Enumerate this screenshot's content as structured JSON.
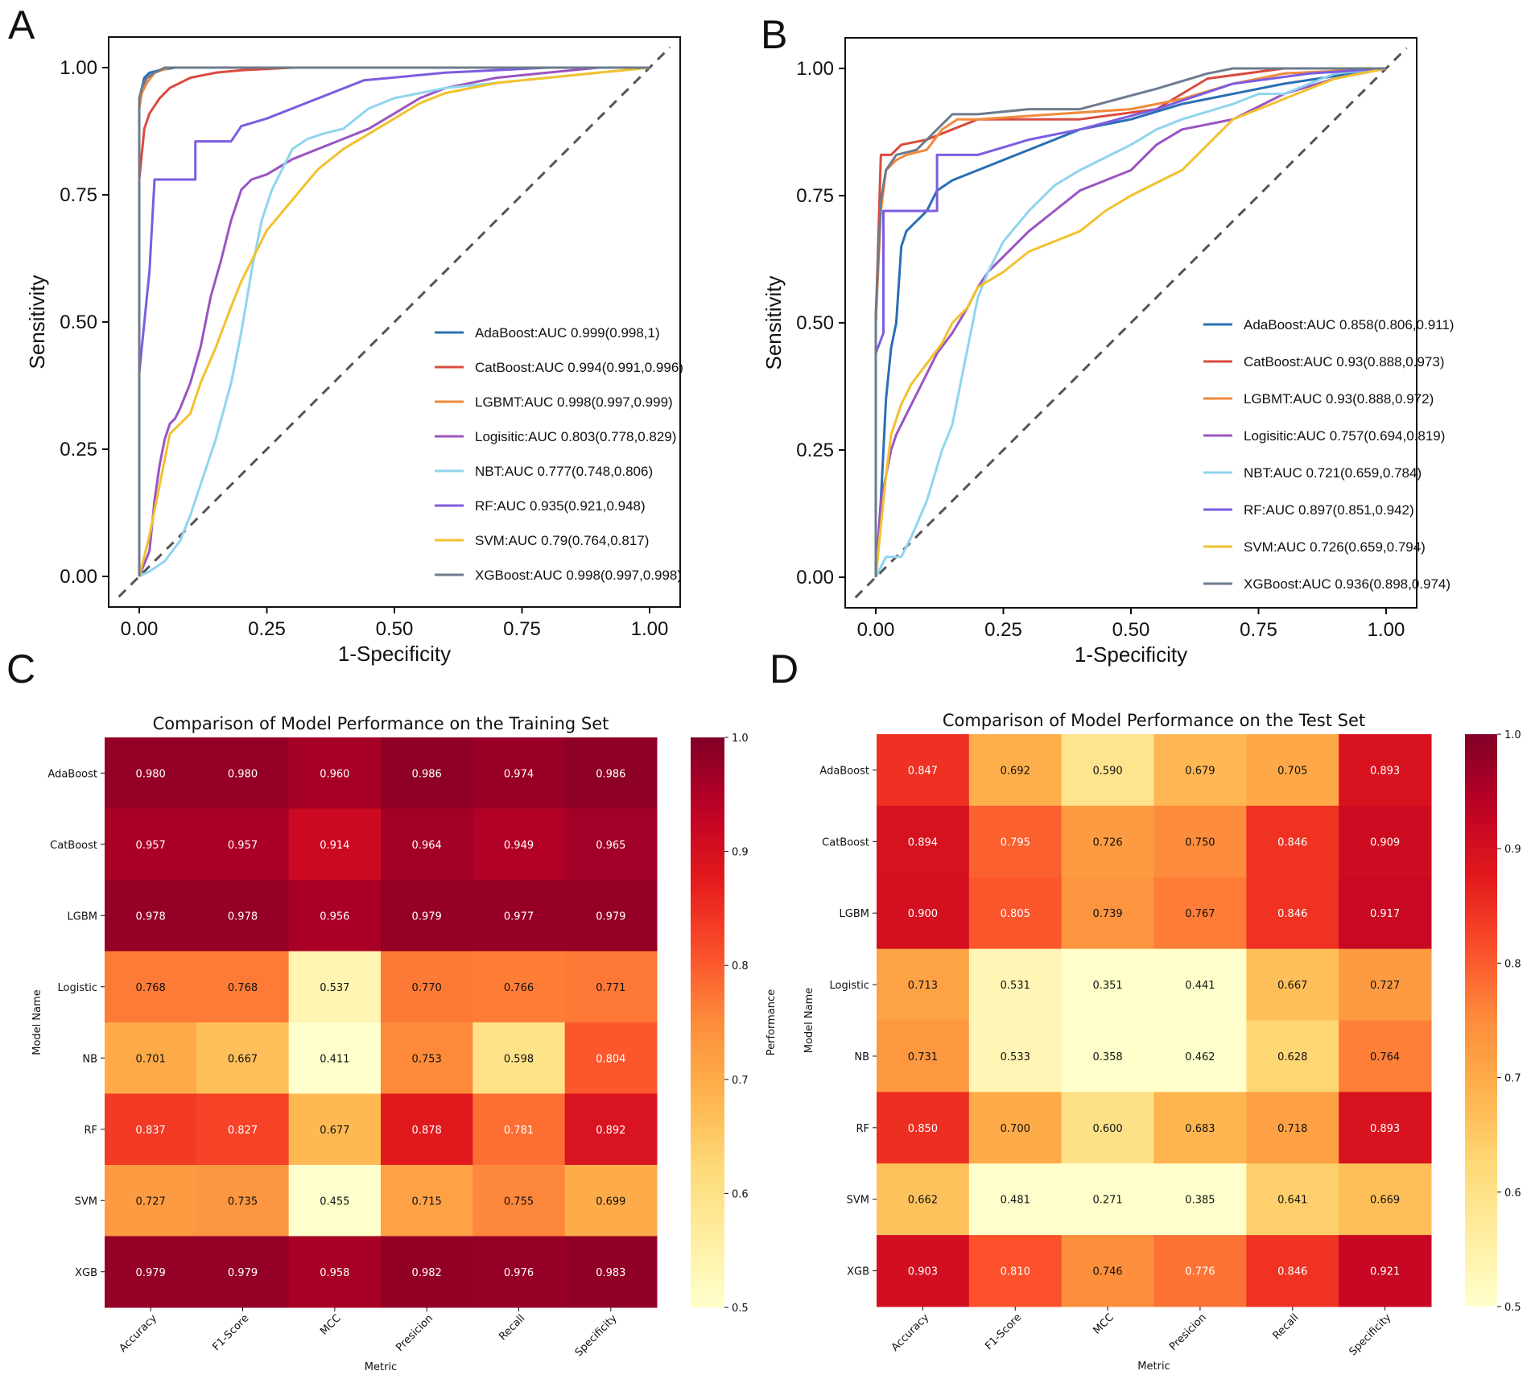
{
  "panels": {
    "a": "A",
    "b": "B",
    "c": "C",
    "d": "D"
  },
  "chart_data": [
    {
      "id": "A",
      "type": "line",
      "title": "",
      "xlabel": "1-Specificity",
      "ylabel": "Sensitivity",
      "xlim": [
        0,
        1
      ],
      "ylim": [
        0,
        1
      ],
      "xticks": [
        "0.00",
        "0.25",
        "0.50",
        "0.75",
        "1.00"
      ],
      "yticks": [
        "0.00",
        "0.25",
        "0.50",
        "0.75",
        "1.00"
      ],
      "diagonal": true,
      "series": [
        {
          "name": "AdaBoost",
          "legend": "AdaBoost:AUC 0.999(0.998,1)",
          "color": "#2a6fb5",
          "x": [
            0,
            0,
            0.005,
            0.01,
            0.02,
            0.04,
            0.07,
            0.1,
            1
          ],
          "y": [
            0,
            0.93,
            0.96,
            0.98,
            0.99,
            0.995,
            1.0,
            1.0,
            1.0
          ]
        },
        {
          "name": "CatBoost",
          "legend": "CatBoost:AUC 0.994(0.991,0.996)",
          "color": "#d94b3f",
          "x": [
            0,
            0,
            0.01,
            0.02,
            0.04,
            0.06,
            0.1,
            0.15,
            0.2,
            0.3,
            0.35,
            1
          ],
          "y": [
            0,
            0.78,
            0.88,
            0.91,
            0.94,
            0.96,
            0.98,
            0.99,
            0.995,
            1.0,
            1.0,
            1.0
          ]
        },
        {
          "name": "LGBMT",
          "legend": "LGBMT:AUC 0.998(0.997,0.999)",
          "color": "#f08a3c",
          "x": [
            0,
            0,
            0.005,
            0.015,
            0.03,
            0.06,
            0.1,
            1
          ],
          "y": [
            0,
            0.92,
            0.95,
            0.97,
            0.99,
            1.0,
            1.0,
            1.0
          ]
        },
        {
          "name": "Logistic",
          "legend": "Logisitic:AUC 0.803(0.778,0.829)",
          "color": "#9a55c2",
          "x": [
            0,
            0.02,
            0.03,
            0.04,
            0.05,
            0.06,
            0.07,
            0.08,
            0.1,
            0.12,
            0.14,
            0.16,
            0.18,
            0.2,
            0.22,
            0.25,
            0.3,
            0.35,
            0.4,
            0.45,
            0.5,
            0.55,
            0.6,
            0.7,
            0.8,
            0.9,
            1.0
          ],
          "y": [
            0,
            0.05,
            0.15,
            0.22,
            0.27,
            0.3,
            0.31,
            0.33,
            0.38,
            0.45,
            0.55,
            0.62,
            0.7,
            0.76,
            0.78,
            0.79,
            0.82,
            0.84,
            0.86,
            0.88,
            0.91,
            0.94,
            0.96,
            0.98,
            0.99,
            1.0,
            1.0
          ]
        },
        {
          "name": "NBT",
          "legend": "NBT:AUC 0.777(0.748,0.806)",
          "color": "#8fd5ef",
          "x": [
            0,
            0.02,
            0.05,
            0.08,
            0.1,
            0.12,
            0.15,
            0.18,
            0.2,
            0.22,
            0.24,
            0.26,
            0.28,
            0.3,
            0.33,
            0.36,
            0.4,
            0.45,
            0.5,
            0.6,
            0.7,
            0.8,
            0.9,
            1.0
          ],
          "y": [
            0,
            0.01,
            0.03,
            0.07,
            0.12,
            0.18,
            0.27,
            0.38,
            0.48,
            0.6,
            0.7,
            0.76,
            0.8,
            0.84,
            0.86,
            0.87,
            0.88,
            0.92,
            0.94,
            0.96,
            0.97,
            0.98,
            0.99,
            1.0
          ]
        },
        {
          "name": "RF",
          "legend": "RF:AUC 0.935(0.921,0.948)",
          "color": "#7d5ce0",
          "x": [
            0,
            0,
            0.02,
            0.03,
            0.06,
            0.06,
            0.11,
            0.11,
            0.18,
            0.2,
            0.25,
            0.44,
            0.6,
            0.8,
            1.0
          ],
          "y": [
            0,
            0.4,
            0.6,
            0.78,
            0.78,
            0.78,
            0.78,
            0.855,
            0.855,
            0.885,
            0.9,
            0.975,
            0.99,
            1.0,
            1.0
          ]
        },
        {
          "name": "SVM",
          "legend": "SVM:AUC 0.79(0.764,0.817)",
          "color": "#f2c12e",
          "x": [
            0,
            0.02,
            0.04,
            0.06,
            0.08,
            0.1,
            0.12,
            0.15,
            0.18,
            0.2,
            0.22,
            0.25,
            0.3,
            0.35,
            0.4,
            0.45,
            0.5,
            0.55,
            0.6,
            0.7,
            0.8,
            0.9,
            1.0
          ],
          "y": [
            0,
            0.08,
            0.18,
            0.28,
            0.3,
            0.32,
            0.38,
            0.45,
            0.53,
            0.58,
            0.62,
            0.68,
            0.74,
            0.8,
            0.84,
            0.87,
            0.9,
            0.93,
            0.95,
            0.97,
            0.98,
            0.99,
            1.0
          ]
        },
        {
          "name": "XGBoost",
          "legend": "XGBoost:AUC 0.998(0.997,0.998)",
          "color": "#6d7b8d",
          "x": [
            0,
            0,
            0.005,
            0.015,
            0.03,
            0.05,
            0.08,
            1
          ],
          "y": [
            0,
            0.94,
            0.96,
            0.98,
            0.99,
            1.0,
            1.0,
            1.0
          ]
        }
      ]
    },
    {
      "id": "B",
      "type": "line",
      "title": "",
      "xlabel": "1-Specificity",
      "ylabel": "Sensitivity",
      "xlim": [
        0,
        1
      ],
      "ylim": [
        0,
        1
      ],
      "xticks": [
        "0.00",
        "0.25",
        "0.50",
        "0.75",
        "1.00"
      ],
      "yticks": [
        "0.00",
        "0.25",
        "0.50",
        "0.75",
        "1.00"
      ],
      "diagonal": true,
      "series": [
        {
          "name": "AdaBoost",
          "legend": "AdaBoost:AUC 0.858(0.806,0.911)",
          "color": "#2a6fb5",
          "x": [
            0,
            0.01,
            0.02,
            0.03,
            0.04,
            0.05,
            0.06,
            0.08,
            0.1,
            0.12,
            0.15,
            0.2,
            0.3,
            0.35,
            0.4,
            0.5,
            0.6,
            0.8,
            1.0
          ],
          "y": [
            0,
            0.15,
            0.35,
            0.45,
            0.5,
            0.65,
            0.68,
            0.7,
            0.72,
            0.76,
            0.78,
            0.8,
            0.84,
            0.86,
            0.88,
            0.9,
            0.93,
            0.97,
            1.0
          ]
        },
        {
          "name": "CatBoost",
          "legend": "CatBoost:AUC 0.93(0.888,0.973)",
          "color": "#d94b3f",
          "x": [
            0,
            0,
            0.01,
            0.01,
            0.03,
            0.05,
            0.1,
            0.15,
            0.2,
            0.4,
            0.55,
            0.6,
            0.65,
            0.8,
            1.0
          ],
          "y": [
            0,
            0.5,
            0.83,
            0.83,
            0.83,
            0.85,
            0.86,
            0.88,
            0.9,
            0.9,
            0.92,
            0.95,
            0.98,
            1.0,
            1.0
          ]
        },
        {
          "name": "LGBMT",
          "legend": "LGBMT:AUC 0.93(0.888,0.972)",
          "color": "#f08a3c",
          "x": [
            0,
            0,
            0.01,
            0.02,
            0.04,
            0.06,
            0.1,
            0.13,
            0.16,
            0.2,
            0.35,
            0.5,
            0.6,
            0.7,
            0.8,
            1.0
          ],
          "y": [
            0,
            0.5,
            0.72,
            0.8,
            0.82,
            0.83,
            0.84,
            0.88,
            0.9,
            0.9,
            0.91,
            0.92,
            0.94,
            0.97,
            0.99,
            1.0
          ]
        },
        {
          "name": "Logistic",
          "legend": "Logisitic:AUC 0.757(0.694,0.819)",
          "color": "#9a55c2",
          "x": [
            0,
            0.01,
            0.02,
            0.03,
            0.04,
            0.06,
            0.08,
            0.1,
            0.12,
            0.15,
            0.18,
            0.2,
            0.22,
            0.25,
            0.3,
            0.35,
            0.4,
            0.5,
            0.55,
            0.6,
            0.7,
            0.8,
            0.9,
            1.0
          ],
          "y": [
            0,
            0.15,
            0.2,
            0.25,
            0.28,
            0.32,
            0.36,
            0.4,
            0.44,
            0.48,
            0.53,
            0.57,
            0.6,
            0.63,
            0.68,
            0.72,
            0.76,
            0.8,
            0.85,
            0.88,
            0.9,
            0.95,
            0.98,
            1.0
          ]
        },
        {
          "name": "NBT",
          "legend": "NBT:AUC 0.721(0.659,0.784)",
          "color": "#8fd5ef",
          "x": [
            0,
            0.02,
            0.05,
            0.07,
            0.1,
            0.13,
            0.15,
            0.18,
            0.2,
            0.22,
            0.25,
            0.3,
            0.35,
            0.4,
            0.5,
            0.55,
            0.6,
            0.7,
            0.75,
            0.8,
            0.9,
            1.0
          ],
          "y": [
            0,
            0.04,
            0.04,
            0.08,
            0.15,
            0.25,
            0.3,
            0.45,
            0.55,
            0.6,
            0.66,
            0.72,
            0.77,
            0.8,
            0.85,
            0.88,
            0.9,
            0.93,
            0.95,
            0.95,
            0.99,
            1.0
          ]
        },
        {
          "name": "RF",
          "legend": "RF:AUC 0.897(0.851,0.942)",
          "color": "#7d5ce0",
          "x": [
            0,
            0,
            0.015,
            0.015,
            0.06,
            0.06,
            0.12,
            0.12,
            0.2,
            0.3,
            0.4,
            0.55,
            0.7,
            0.85,
            1.0
          ],
          "y": [
            0,
            0.44,
            0.48,
            0.72,
            0.72,
            0.72,
            0.72,
            0.83,
            0.83,
            0.86,
            0.88,
            0.92,
            0.97,
            0.99,
            1.0
          ]
        },
        {
          "name": "SVM",
          "legend": "SVM:AUC 0.726(0.659,0.794)",
          "color": "#f2c12e",
          "x": [
            0,
            0.01,
            0.02,
            0.03,
            0.05,
            0.07,
            0.1,
            0.13,
            0.15,
            0.18,
            0.2,
            0.25,
            0.3,
            0.35,
            0.4,
            0.45,
            0.5,
            0.6,
            0.65,
            0.7,
            0.8,
            0.9,
            1.0
          ],
          "y": [
            0,
            0.1,
            0.2,
            0.28,
            0.34,
            0.38,
            0.42,
            0.46,
            0.5,
            0.53,
            0.57,
            0.6,
            0.64,
            0.66,
            0.68,
            0.72,
            0.75,
            0.8,
            0.85,
            0.9,
            0.94,
            0.98,
            1.0
          ]
        },
        {
          "name": "XGBoost",
          "legend": "XGBoost:AUC 0.936(0.898,0.974)",
          "color": "#6d7b8d",
          "x": [
            0,
            0,
            0.01,
            0.02,
            0.04,
            0.08,
            0.12,
            0.15,
            0.2,
            0.3,
            0.4,
            0.55,
            0.65,
            0.7,
            0.8,
            1.0
          ],
          "y": [
            0,
            0.52,
            0.74,
            0.8,
            0.83,
            0.84,
            0.88,
            0.91,
            0.91,
            0.92,
            0.92,
            0.96,
            0.99,
            1.0,
            1.0,
            1.0
          ]
        }
      ]
    },
    {
      "id": "C",
      "type": "heatmap",
      "title": "Comparison of Model Performance on the Training Set",
      "xlabel": "Metric",
      "ylabel": "Model Name",
      "colorbar_label": "Performance",
      "colorbar_range": [
        0.5,
        1.0
      ],
      "colorbar_ticks": [
        "0.5",
        "0.6",
        "0.7",
        "0.8",
        "0.9",
        "1.0"
      ],
      "columns": [
        "Accuracy",
        "F1-Score",
        "MCC",
        "Presicion",
        "Recall",
        "Specificity"
      ],
      "rows": [
        "AdaBoost",
        "CatBoost",
        "LGBM",
        "Logistic",
        "NB",
        "RF",
        "SVM",
        "XGB"
      ],
      "values": [
        [
          0.98,
          0.98,
          0.96,
          0.986,
          0.974,
          0.986
        ],
        [
          0.957,
          0.957,
          0.914,
          0.964,
          0.949,
          0.965
        ],
        [
          0.978,
          0.978,
          0.956,
          0.979,
          0.977,
          0.979
        ],
        [
          0.768,
          0.768,
          0.537,
          0.77,
          0.766,
          0.771
        ],
        [
          0.701,
          0.667,
          0.411,
          0.753,
          0.598,
          0.804
        ],
        [
          0.837,
          0.827,
          0.677,
          0.878,
          0.781,
          0.892
        ],
        [
          0.727,
          0.735,
          0.455,
          0.715,
          0.755,
          0.699
        ],
        [
          0.979,
          0.979,
          0.958,
          0.982,
          0.976,
          0.983
        ]
      ],
      "labels": [
        [
          "0.980",
          "0.980",
          "0.960",
          "0.986",
          "0.974",
          "0.986"
        ],
        [
          "0.957",
          "0.957",
          "0.914",
          "0.964",
          "0.949",
          "0.965"
        ],
        [
          "0.978",
          "0.978",
          "0.956",
          "0.979",
          "0.977",
          "0.979"
        ],
        [
          "0.768",
          "0.768",
          "0.537",
          "0.770",
          "0.766",
          "0.771"
        ],
        [
          "0.701",
          "0.667",
          "0.411",
          "0.753",
          "0.598",
          "0.804"
        ],
        [
          "0.837",
          "0.827",
          "0.677",
          "0.878",
          "0.781",
          "0.892"
        ],
        [
          "0.727",
          "0.735",
          "0.455",
          "0.715",
          "0.755",
          "0.699"
        ],
        [
          "0.979",
          "0.979",
          "0.958",
          "0.982",
          "0.976",
          "0.983"
        ]
      ]
    },
    {
      "id": "D",
      "type": "heatmap",
      "title": "Comparison of Model Performance on the Test Set",
      "xlabel": "Metric",
      "ylabel": "Model Name",
      "colorbar_label": "Performance",
      "colorbar_range": [
        0.5,
        1.0
      ],
      "colorbar_ticks": [
        "0.5",
        "0.6",
        "0.7",
        "0.8",
        "0.9",
        "1.0"
      ],
      "columns": [
        "Accuracy",
        "F1-Score",
        "MCC",
        "Presicion",
        "Recall",
        "Specificity"
      ],
      "rows": [
        "AdaBoost",
        "CatBoost",
        "LGBM",
        "Logistic",
        "NB",
        "RF",
        "SVM",
        "XGB"
      ],
      "values": [
        [
          0.847,
          0.692,
          0.59,
          0.679,
          0.705,
          0.893
        ],
        [
          0.894,
          0.795,
          0.726,
          0.75,
          0.846,
          0.909
        ],
        [
          0.9,
          0.805,
          0.739,
          0.767,
          0.846,
          0.917
        ],
        [
          0.713,
          0.531,
          0.351,
          0.441,
          0.667,
          0.727
        ],
        [
          0.731,
          0.533,
          0.358,
          0.462,
          0.628,
          0.764
        ],
        [
          0.85,
          0.7,
          0.6,
          0.683,
          0.718,
          0.893
        ],
        [
          0.662,
          0.481,
          0.271,
          0.385,
          0.641,
          0.669
        ],
        [
          0.903,
          0.81,
          0.746,
          0.776,
          0.846,
          0.921
        ]
      ],
      "labels": [
        [
          "0.847",
          "0.692",
          "0.590",
          "0.679",
          "0.705",
          "0.893"
        ],
        [
          "0.894",
          "0.795",
          "0.726",
          "0.750",
          "0.846",
          "0.909"
        ],
        [
          "0.900",
          "0.805",
          "0.739",
          "0.767",
          "0.846",
          "0.917"
        ],
        [
          "0.713",
          "0.531",
          "0.351",
          "0.441",
          "0.667",
          "0.727"
        ],
        [
          "0.731",
          "0.533",
          "0.358",
          "0.462",
          "0.628",
          "0.764"
        ],
        [
          "0.850",
          "0.700",
          "0.600",
          "0.683",
          "0.718",
          "0.893"
        ],
        [
          "0.662",
          "0.481",
          "0.271",
          "0.385",
          "0.641",
          "0.669"
        ],
        [
          "0.903",
          "0.810",
          "0.746",
          "0.776",
          "0.846",
          "0.921"
        ]
      ]
    }
  ]
}
